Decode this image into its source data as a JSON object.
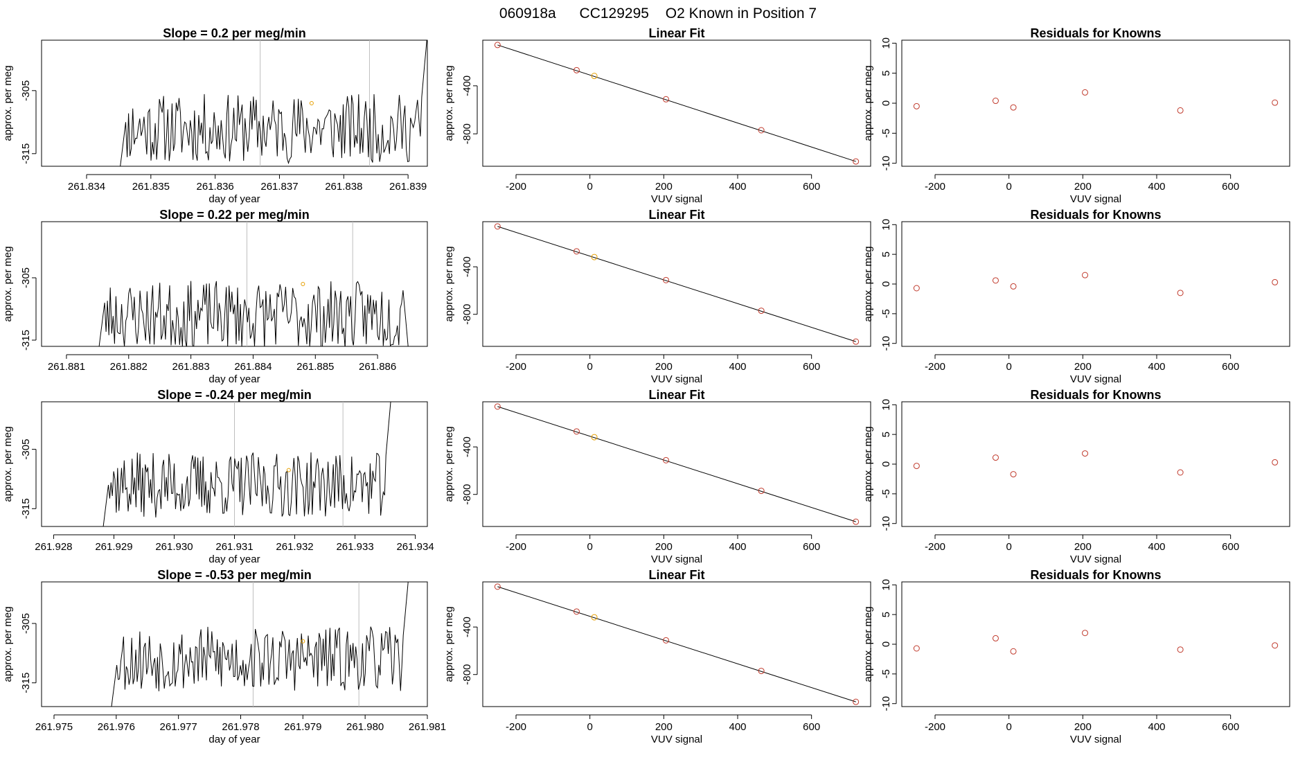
{
  "supertitle": {
    "run": "060918a",
    "tank": "CC129295",
    "description": "O2 Known in Position  7"
  },
  "colors": {
    "trace": "#000000",
    "known_point": "#c0392b",
    "highlight": "#e69f00",
    "vline": "#bebebe"
  },
  "chart_data": [
    {
      "type": "line",
      "row": 0,
      "title": "Slope =  0.2  per meg/min",
      "xlabel": "day of year",
      "ylabel": "approx. per meg",
      "xlim": [
        261.8333,
        261.8393
      ],
      "ylim": [
        -317,
        -297
      ],
      "xticks": [
        261.834,
        261.835,
        261.836,
        261.837,
        261.838,
        261.839
      ],
      "xtick_labels": [
        "261.834",
        "261.835",
        "261.836",
        "261.837",
        "261.838",
        "261.839"
      ],
      "yticks": [
        -315,
        -305
      ],
      "ytick_labels": [
        "-315",
        "-305"
      ],
      "trace_start": 261.8345,
      "trace_end": 261.8393,
      "vlines": [
        261.8367,
        261.8384
      ],
      "marker": {
        "x": 261.8375,
        "y": -307
      },
      "seed": 11
    },
    {
      "type": "line",
      "row": 1,
      "title": "Slope =  0.22  per meg/min",
      "xlabel": "day of year",
      "ylabel": "approx. per meg",
      "xlim": [
        261.8806,
        261.8868
      ],
      "ylim": [
        -316,
        -296
      ],
      "xticks": [
        261.881,
        261.882,
        261.883,
        261.884,
        261.885,
        261.886
      ],
      "xtick_labels": [
        "261.881",
        "261.882",
        "261.883",
        "261.884",
        "261.885",
        "261.886"
      ],
      "yticks": [
        -315,
        -305
      ],
      "ytick_labels": [
        "-315",
        "-305"
      ],
      "trace_start": 261.8815,
      "trace_end": 261.8865,
      "vlines": [
        261.8839,
        261.8856
      ],
      "marker": {
        "x": 261.8848,
        "y": -306
      },
      "seed": 23
    },
    {
      "type": "line",
      "row": 2,
      "title": "Slope =  -0.24  per meg/min",
      "xlabel": "day of year",
      "ylabel": "approx. per meg",
      "xlim": [
        261.9278,
        261.9342
      ],
      "ylim": [
        -318,
        -297
      ],
      "xticks": [
        261.928,
        261.929,
        261.93,
        261.931,
        261.932,
        261.933,
        261.934
      ],
      "xtick_labels": [
        "261.928",
        "261.929",
        "261.930",
        "261.931",
        "261.932",
        "261.933",
        "261.934"
      ],
      "yticks": [
        -315,
        -305
      ],
      "ytick_labels": [
        "-315",
        "-305"
      ],
      "trace_start": 261.9288,
      "trace_end": 261.9336,
      "vlines": [
        261.931,
        261.9328
      ],
      "marker": {
        "x": 261.9319,
        "y": -308.5
      },
      "seed": 37
    },
    {
      "type": "line",
      "row": 3,
      "title": "Slope =  -0.53  per meg/min",
      "xlabel": "day of year",
      "ylabel": "approx. per meg",
      "xlim": [
        261.9748,
        261.981
      ],
      "ylim": [
        -319,
        -298
      ],
      "xticks": [
        261.975,
        261.976,
        261.977,
        261.978,
        261.979,
        261.98,
        261.981
      ],
      "xtick_labels": [
        "261.975",
        "261.976",
        "261.977",
        "261.978",
        "261.979",
        "261.980",
        "261.981"
      ],
      "yticks": [
        -315,
        -305
      ],
      "ytick_labels": [
        "-315",
        "-305"
      ],
      "trace_start": 261.9759,
      "trace_end": 261.9807,
      "vlines": [
        261.9782,
        261.9799
      ],
      "marker": {
        "x": 261.979,
        "y": -308
      },
      "seed": 53
    },
    {
      "type": "scatter",
      "row": 0,
      "title": "Linear Fit",
      "xlabel": "VUV signal",
      "ylabel": "approx. per meg",
      "xlim": [
        -290,
        760
      ],
      "ylim": [
        -1070,
        -20
      ],
      "xticks": [
        -200,
        0,
        200,
        400,
        600
      ],
      "xtick_labels": [
        "-200",
        "0",
        "200",
        "400",
        "600"
      ],
      "yticks": [
        -400,
        -800
      ],
      "ytick_labels": [
        "-400",
        "-800"
      ],
      "line": {
        "x": [
          -250,
          720
        ],
        "y": [
          -60,
          -1030
        ]
      },
      "points": {
        "x": [
          -250,
          -36,
          12,
          206,
          464,
          720
        ],
        "y": [
          -60,
          -270,
          -318,
          -512,
          -770,
          -1030
        ]
      },
      "highlight_index": 2
    },
    {
      "type": "scatter",
      "row": 1,
      "title": "Linear Fit",
      "xlabel": "VUV signal",
      "ylabel": "approx. per meg",
      "xlim": [
        -290,
        760
      ],
      "ylim": [
        -1070,
        -20
      ],
      "xticks": [
        -200,
        0,
        200,
        400,
        600
      ],
      "xtick_labels": [
        "-200",
        "0",
        "200",
        "400",
        "600"
      ],
      "yticks": [
        -400,
        -800
      ],
      "ytick_labels": [
        "-400",
        "-800"
      ],
      "line": {
        "x": [
          -250,
          720
        ],
        "y": [
          -60,
          -1030
        ]
      },
      "points": {
        "x": [
          -250,
          -36,
          12,
          206,
          464,
          720
        ],
        "y": [
          -60,
          -270,
          -318,
          -512,
          -770,
          -1030
        ]
      },
      "highlight_index": 2
    },
    {
      "type": "scatter",
      "row": 2,
      "title": "Linear Fit",
      "xlabel": "VUV signal",
      "ylabel": "approx. per meg",
      "xlim": [
        -290,
        760
      ],
      "ylim": [
        -1070,
        -20
      ],
      "xticks": [
        -200,
        0,
        200,
        400,
        600
      ],
      "xtick_labels": [
        "-200",
        "0",
        "200",
        "400",
        "600"
      ],
      "yticks": [
        -400,
        -800
      ],
      "ytick_labels": [
        "-400",
        "-800"
      ],
      "line": {
        "x": [
          -250,
          720
        ],
        "y": [
          -60,
          -1030
        ]
      },
      "points": {
        "x": [
          -250,
          -36,
          12,
          206,
          464,
          720
        ],
        "y": [
          -60,
          -270,
          -318,
          -512,
          -770,
          -1030
        ]
      },
      "highlight_index": 2
    },
    {
      "type": "scatter",
      "row": 3,
      "title": "Linear Fit",
      "xlabel": "VUV signal",
      "ylabel": "approx. per meg",
      "xlim": [
        -290,
        760
      ],
      "ylim": [
        -1070,
        -20
      ],
      "xticks": [
        -200,
        0,
        200,
        400,
        600
      ],
      "xtick_labels": [
        "-200",
        "0",
        "200",
        "400",
        "600"
      ],
      "yticks": [
        -400,
        -800
      ],
      "ytick_labels": [
        "-400",
        "-800"
      ],
      "line": {
        "x": [
          -250,
          720
        ],
        "y": [
          -60,
          -1030
        ]
      },
      "points": {
        "x": [
          -250,
          -36,
          12,
          206,
          464,
          720
        ],
        "y": [
          -60,
          -270,
          -318,
          -512,
          -770,
          -1030
        ]
      },
      "highlight_index": 2
    },
    {
      "type": "scatter",
      "row": 0,
      "title": "Residuals for Knowns",
      "xlabel": "VUV signal",
      "ylabel": "approx. per meg",
      "xlim": [
        -290,
        760
      ],
      "ylim": [
        -10.5,
        10.5
      ],
      "xticks": [
        -200,
        0,
        200,
        400,
        600
      ],
      "xtick_labels": [
        "-200",
        "0",
        "200",
        "400",
        "600"
      ],
      "yticks": [
        10,
        5,
        0,
        -5,
        -10
      ],
      "ytick_labels": [
        "10",
        "5",
        "0",
        "-5",
        "-10"
      ],
      "points": {
        "x": [
          -250,
          -36,
          12,
          206,
          464,
          720
        ],
        "y": [
          -0.5,
          0.4,
          -0.7,
          1.8,
          -1.2,
          0.1
        ]
      }
    },
    {
      "type": "scatter",
      "row": 1,
      "title": "Residuals for Knowns",
      "xlabel": "VUV signal",
      "ylabel": "approx. per meg",
      "xlim": [
        -290,
        760
      ],
      "ylim": [
        -10.5,
        10.5
      ],
      "xticks": [
        -200,
        0,
        200,
        400,
        600
      ],
      "xtick_labels": [
        "-200",
        "0",
        "200",
        "400",
        "600"
      ],
      "yticks": [
        10,
        5,
        0,
        -5,
        -10
      ],
      "ytick_labels": [
        "10",
        "5",
        "0",
        "-5",
        "-10"
      ],
      "points": {
        "x": [
          -250,
          -36,
          12,
          206,
          464,
          720
        ],
        "y": [
          -0.7,
          0.6,
          -0.4,
          1.5,
          -1.5,
          0.3
        ]
      }
    },
    {
      "type": "scatter",
      "row": 2,
      "title": "Residuals for Knowns",
      "xlabel": "VUV signal",
      "ylabel": "approx. per meg",
      "xlim": [
        -290,
        760
      ],
      "ylim": [
        -10.5,
        10.5
      ],
      "xticks": [
        -200,
        0,
        200,
        400,
        600
      ],
      "xtick_labels": [
        "-200",
        "0",
        "200",
        "400",
        "600"
      ],
      "yticks": [
        10,
        5,
        0,
        -5,
        -10
      ],
      "ytick_labels": [
        "10",
        "5",
        "0",
        "-5",
        "-10"
      ],
      "points": {
        "x": [
          -250,
          -36,
          12,
          206,
          464,
          720
        ],
        "y": [
          -0.3,
          1.1,
          -1.7,
          1.8,
          -1.4,
          0.3
        ]
      }
    },
    {
      "type": "scatter",
      "row": 3,
      "title": "Residuals for Knowns",
      "xlabel": "VUV signal",
      "ylabel": "approx. per meg",
      "xlim": [
        -290,
        760
      ],
      "ylim": [
        -10.5,
        10.5
      ],
      "xticks": [
        -200,
        0,
        200,
        400,
        600
      ],
      "xtick_labels": [
        "-200",
        "0",
        "200",
        "400",
        "600"
      ],
      "yticks": [
        10,
        5,
        0,
        -5,
        -10
      ],
      "ytick_labels": [
        "10",
        "5",
        "0",
        "-5",
        "-10"
      ],
      "points": {
        "x": [
          -250,
          -36,
          12,
          206,
          464,
          720
        ],
        "y": [
          -0.7,
          1.0,
          -1.2,
          1.9,
          -0.9,
          -0.2
        ]
      }
    }
  ]
}
